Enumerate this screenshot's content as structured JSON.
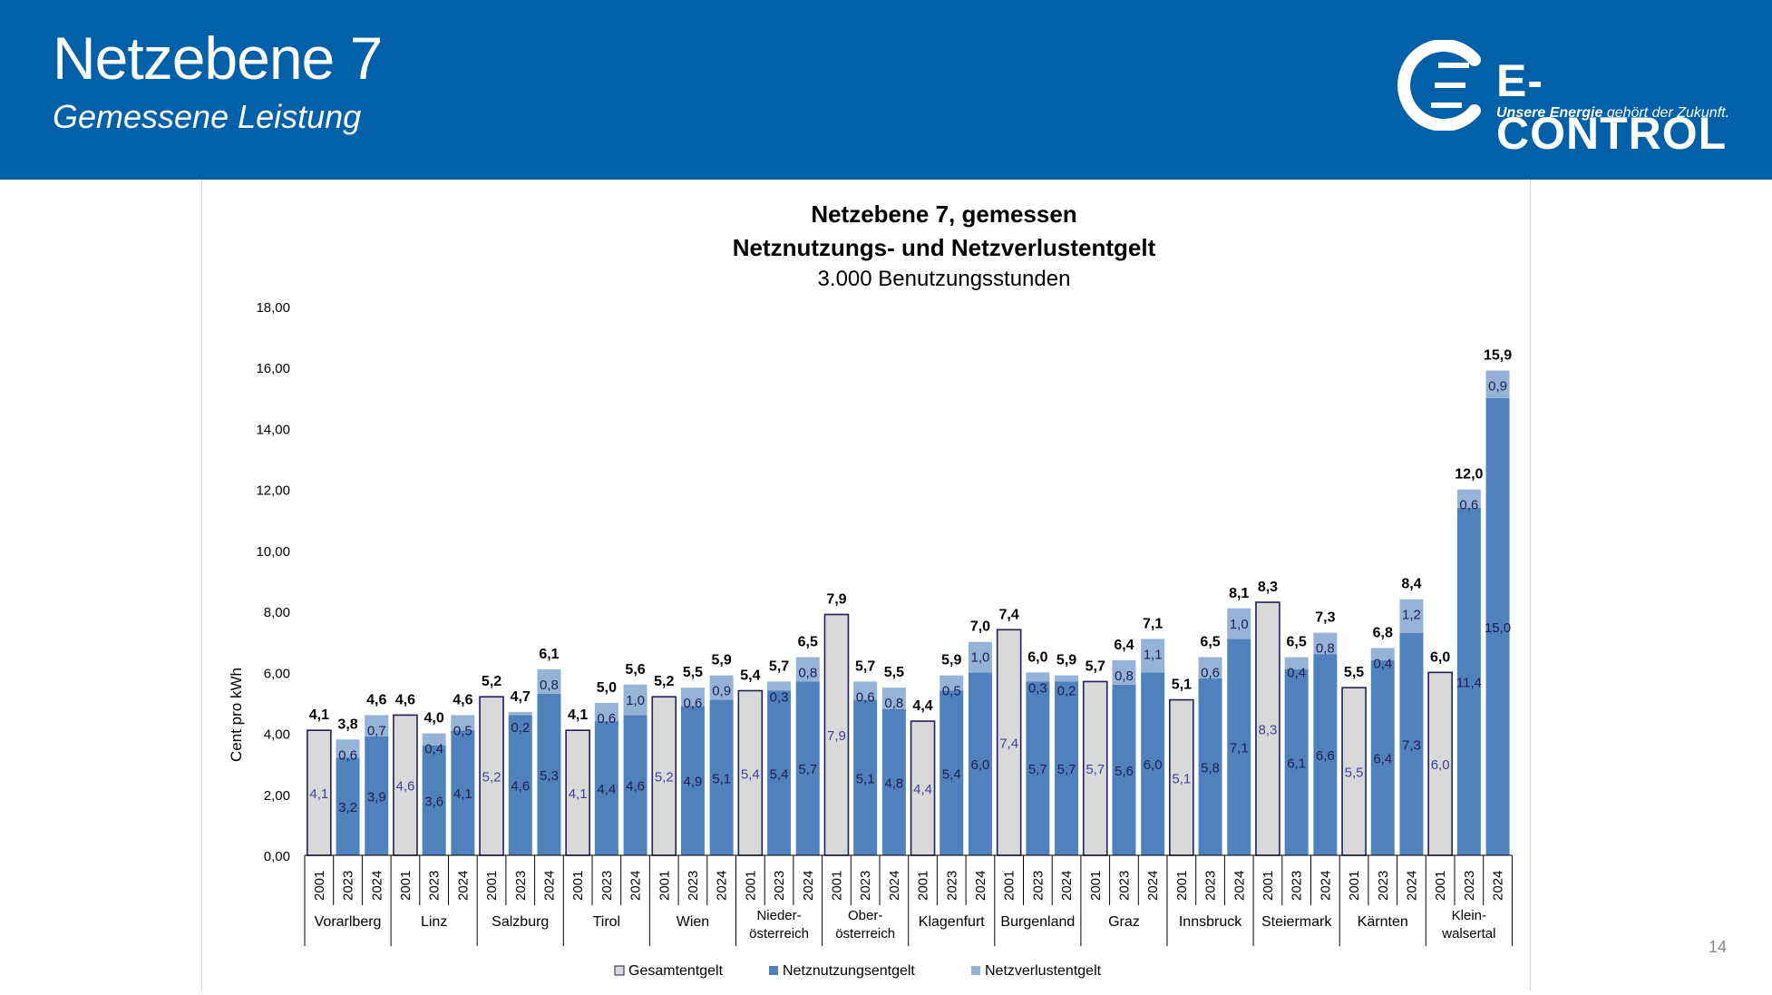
{
  "slide": {
    "title": "Netzebene 7",
    "subtitle": "Gemessene Leistung",
    "page_number": "14"
  },
  "logo": {
    "brand": "E-CONTROL",
    "tagline_bold": "Unsere Energie",
    "tagline_rest": " gehört der Zukunft."
  },
  "colors": {
    "header": "#0160a8",
    "gesamt": "#d9d9d9",
    "netznutzung": "#4f81bd",
    "netzverlust": "#95b3d7",
    "bar_outline": "#1f1f5c"
  },
  "chart_data": {
    "type": "bar",
    "title_line1": "Netzebene 7, gemessen",
    "title_line2": "Netznutzungs- und Netzverlustentgelt",
    "subtitle": "3.000 Benutzungsstunden",
    "ylabel": "Cent pro kWh",
    "ylim": [
      0,
      18
    ],
    "yticks": [
      "0,00",
      "2,00",
      "4,00",
      "6,00",
      "8,00",
      "10,00",
      "12,00",
      "14,00",
      "16,00",
      "18,00"
    ],
    "legend": [
      "Gesamtentgelt",
      "Netznutzungsentgelt",
      "Netzverlustentgelt"
    ],
    "legend_position": "bottom",
    "groups": [
      {
        "name": [
          "Vorarlberg"
        ],
        "bars": [
          {
            "year": "2001",
            "total": 4.1,
            "total_label": "4,1",
            "nn": 4.1,
            "nn_label": "4,1",
            "nv": null,
            "nv_label": ""
          },
          {
            "year": "2023",
            "total": 3.8,
            "total_label": "3,8",
            "nn": 3.2,
            "nn_label": "3,2",
            "nv": 0.6,
            "nv_label": "0,6"
          },
          {
            "year": "2024",
            "total": 4.6,
            "total_label": "4,6",
            "nn": 3.9,
            "nn_label": "3,9",
            "nv": 0.7,
            "nv_label": "0,7"
          }
        ]
      },
      {
        "name": [
          "Linz"
        ],
        "bars": [
          {
            "year": "2001",
            "total": 4.6,
            "total_label": "4,6",
            "nn": 4.6,
            "nn_label": "4,6",
            "nv": null,
            "nv_label": ""
          },
          {
            "year": "2023",
            "total": 4.0,
            "total_label": "4,0",
            "nn": 3.6,
            "nn_label": "3,6",
            "nv": 0.4,
            "nv_label": "0,4"
          },
          {
            "year": "2024",
            "total": 4.6,
            "total_label": "4,6",
            "nn": 4.1,
            "nn_label": "4,1",
            "nv": 0.5,
            "nv_label": "0,5"
          }
        ]
      },
      {
        "name": [
          "Salzburg"
        ],
        "bars": [
          {
            "year": "2001",
            "total": 5.2,
            "total_label": "5,2",
            "nn": 5.2,
            "nn_label": "5,2",
            "nv": null,
            "nv_label": ""
          },
          {
            "year": "2023",
            "total": 4.7,
            "total_label": "4,7",
            "nn": 4.6,
            "nn_label": "4,6",
            "nv": 0.2,
            "nv_label": "0,2"
          },
          {
            "year": "2024",
            "total": 6.1,
            "total_label": "6,1",
            "nn": 5.3,
            "nn_label": "5,3",
            "nv": 0.8,
            "nv_label": "0,8"
          }
        ]
      },
      {
        "name": [
          "Tirol"
        ],
        "bars": [
          {
            "year": "2001",
            "total": 4.1,
            "total_label": "4,1",
            "nn": 4.1,
            "nn_label": "4,1",
            "nv": null,
            "nv_label": ""
          },
          {
            "year": "2023",
            "total": 5.0,
            "total_label": "5,0",
            "nn": 4.4,
            "nn_label": "4,4",
            "nv": 0.6,
            "nv_label": "0,6"
          },
          {
            "year": "2024",
            "total": 5.6,
            "total_label": "5,6",
            "nn": 4.6,
            "nn_label": "4,6",
            "nv": 1.0,
            "nv_label": "1,0"
          }
        ]
      },
      {
        "name": [
          "Wien"
        ],
        "bars": [
          {
            "year": "2001",
            "total": 5.2,
            "total_label": "5,2",
            "nn": 5.2,
            "nn_label": "5,2",
            "nv": null,
            "nv_label": ""
          },
          {
            "year": "2023",
            "total": 5.5,
            "total_label": "5,5",
            "nn": 4.9,
            "nn_label": "4,9",
            "nv": 0.6,
            "nv_label": "0,6"
          },
          {
            "year": "2024",
            "total": 5.9,
            "total_label": "5,9",
            "nn": 5.1,
            "nn_label": "5,1",
            "nv": 0.9,
            "nv_label": "0,9"
          }
        ]
      },
      {
        "name": [
          "Nieder-",
          "österreich"
        ],
        "bars": [
          {
            "year": "2001",
            "total": 5.4,
            "total_label": "5,4",
            "nn": 5.4,
            "nn_label": "5,4",
            "nv": null,
            "nv_label": ""
          },
          {
            "year": "2023",
            "total": 5.7,
            "total_label": "5,7",
            "nn": 5.4,
            "nn_label": "5,4",
            "nv": 0.3,
            "nv_label": "0,3"
          },
          {
            "year": "2024",
            "total": 6.5,
            "total_label": "6,5",
            "nn": 5.7,
            "nn_label": "5,7",
            "nv": 0.8,
            "nv_label": "0,8"
          }
        ]
      },
      {
        "name": [
          "Ober-",
          "österreich"
        ],
        "bars": [
          {
            "year": "2001",
            "total": 7.9,
            "total_label": "7,9",
            "nn": 7.9,
            "nn_label": "7,9",
            "nv": null,
            "nv_label": ""
          },
          {
            "year": "2023",
            "total": 5.7,
            "total_label": "5,7",
            "nn": 5.1,
            "nn_label": "5,1",
            "nv": 0.6,
            "nv_label": "0,6"
          },
          {
            "year": "2024",
            "total": 5.5,
            "total_label": "5,5",
            "nn": 4.8,
            "nn_label": "4,8",
            "nv": 0.8,
            "nv_label": "0,8"
          }
        ]
      },
      {
        "name": [
          "Klagenfurt"
        ],
        "bars": [
          {
            "year": "2001",
            "total": 4.4,
            "total_label": "4,4",
            "nn": 4.4,
            "nn_label": "4,4",
            "nv": null,
            "nv_label": ""
          },
          {
            "year": "2023",
            "total": 5.9,
            "total_label": "5,9",
            "nn": 5.4,
            "nn_label": "5,4",
            "nv": 0.5,
            "nv_label": "0,5"
          },
          {
            "year": "2024",
            "total": 7.0,
            "total_label": "7,0",
            "nn": 6.0,
            "nn_label": "6,0",
            "nv": 1.0,
            "nv_label": "1,0"
          }
        ]
      },
      {
        "name": [
          "Burgenland"
        ],
        "bars": [
          {
            "year": "2001",
            "total": 7.4,
            "total_label": "7,4",
            "nn": 7.4,
            "nn_label": "7,4",
            "nv": null,
            "nv_label": ""
          },
          {
            "year": "2023",
            "total": 6.0,
            "total_label": "6,0",
            "nn": 5.7,
            "nn_label": "5,7",
            "nv": 0.3,
            "nv_label": "0,3"
          },
          {
            "year": "2024",
            "total": 5.9,
            "total_label": "5,9",
            "nn": 5.7,
            "nn_label": "5,7",
            "nv": 0.2,
            "nv_label": "0,2"
          }
        ]
      },
      {
        "name": [
          "Graz"
        ],
        "bars": [
          {
            "year": "2001",
            "total": 5.7,
            "total_label": "5,7",
            "nn": 5.7,
            "nn_label": "5,7",
            "nv": null,
            "nv_label": ""
          },
          {
            "year": "2023",
            "total": 6.4,
            "total_label": "6,4",
            "nn": 5.6,
            "nn_label": "5,6",
            "nv": 0.8,
            "nv_label": "0,8"
          },
          {
            "year": "2024",
            "total": 7.1,
            "total_label": "7,1",
            "nn": 6.0,
            "nn_label": "6,0",
            "nv": 1.1,
            "nv_label": "1,1"
          }
        ]
      },
      {
        "name": [
          "Innsbruck"
        ],
        "bars": [
          {
            "year": "2001",
            "total": 5.1,
            "total_label": "5,1",
            "nn": 5.1,
            "nn_label": "5,1",
            "nv": null,
            "nv_label": ""
          },
          {
            "year": "2023",
            "total": 6.5,
            "total_label": "6,5",
            "nn": 5.8,
            "nn_label": "5,8",
            "nv": 0.6,
            "nv_label": "0,6"
          },
          {
            "year": "2024",
            "total": 8.1,
            "total_label": "8,1",
            "nn": 7.1,
            "nn_label": "7,1",
            "nv": 1.0,
            "nv_label": "1,0"
          }
        ]
      },
      {
        "name": [
          "Steiermark"
        ],
        "bars": [
          {
            "year": "2001",
            "total": 8.3,
            "total_label": "8,3",
            "nn": 8.3,
            "nn_label": "8,3",
            "nv": null,
            "nv_label": ""
          },
          {
            "year": "2023",
            "total": 6.5,
            "total_label": "6,5",
            "nn": 6.1,
            "nn_label": "6,1",
            "nv": 0.4,
            "nv_label": "0,4"
          },
          {
            "year": "2024",
            "total": 7.3,
            "total_label": "7,3",
            "nn": 6.6,
            "nn_label": "6,6",
            "nv": 0.8,
            "nv_label": "0,8"
          }
        ]
      },
      {
        "name": [
          "Kärnten"
        ],
        "bars": [
          {
            "year": "2001",
            "total": 5.5,
            "total_label": "5,5",
            "nn": 5.5,
            "nn_label": "5,5",
            "nv": null,
            "nv_label": ""
          },
          {
            "year": "2023",
            "total": 6.8,
            "total_label": "6,8",
            "nn": 6.4,
            "nn_label": "6,4",
            "nv": 0.4,
            "nv_label": "0,4"
          },
          {
            "year": "2024",
            "total": 8.4,
            "total_label": "8,4",
            "nn": 7.3,
            "nn_label": "7,3",
            "nv": 1.2,
            "nv_label": "1,2"
          }
        ]
      },
      {
        "name": [
          "Klein-",
          "walsertal"
        ],
        "bars": [
          {
            "year": "2001",
            "total": 6.0,
            "total_label": "6,0",
            "nn": 6.0,
            "nn_label": "6,0",
            "nv": null,
            "nv_label": ""
          },
          {
            "year": "2023",
            "total": 12.0,
            "total_label": "12,0",
            "nn": 11.4,
            "nn_label": "11,4",
            "nv": 0.6,
            "nv_label": "0,6"
          },
          {
            "year": "2024",
            "total": 15.9,
            "total_label": "15,9",
            "nn": 15.0,
            "nn_label": "15,0",
            "nv": 0.9,
            "nv_label": "0,9"
          }
        ]
      }
    ]
  }
}
